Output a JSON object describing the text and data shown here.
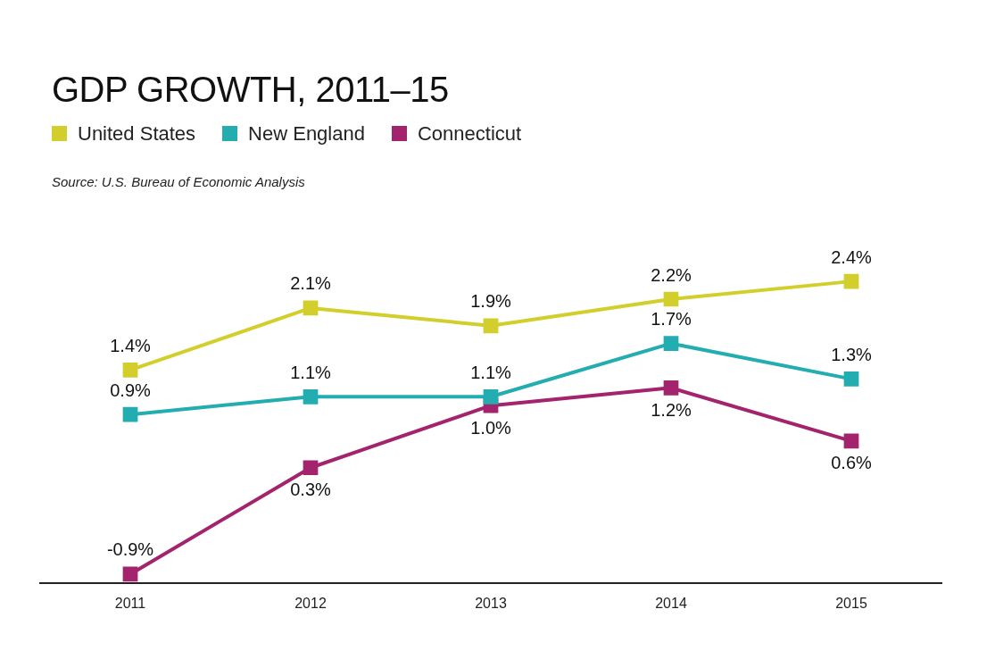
{
  "chart_data": {
    "type": "line",
    "title": "GDP GROWTH, 2011–15",
    "annotations": [
      "Source: U.S. Bureau of Economic Analysis"
    ],
    "categories": [
      "2011",
      "2012",
      "2013",
      "2014",
      "2015"
    ],
    "series": [
      {
        "name": "United States",
        "color": "#d2cf2c",
        "values": [
          1.4,
          2.1,
          1.9,
          2.2,
          2.4
        ],
        "value_labels": [
          "1.4%",
          "2.1%",
          "1.9%",
          "2.2%",
          "2.4%"
        ]
      },
      {
        "name": "New England",
        "color": "#23adb0",
        "values": [
          0.9,
          1.1,
          1.1,
          1.7,
          1.3
        ],
        "value_labels": [
          "0.9%",
          "1.1%",
          "1.1%",
          "1.7%",
          "1.3%"
        ]
      },
      {
        "name": "Connecticut",
        "color": "#a3236c",
        "values": [
          -0.9,
          0.3,
          1.0,
          1.2,
          0.6
        ],
        "value_labels": [
          "-0.9%",
          "0.3%",
          "1.0%",
          "1.2%",
          "0.6%"
        ]
      }
    ],
    "legend": "top left",
    "marker": "square",
    "line_style": "solid",
    "grid": false
  }
}
